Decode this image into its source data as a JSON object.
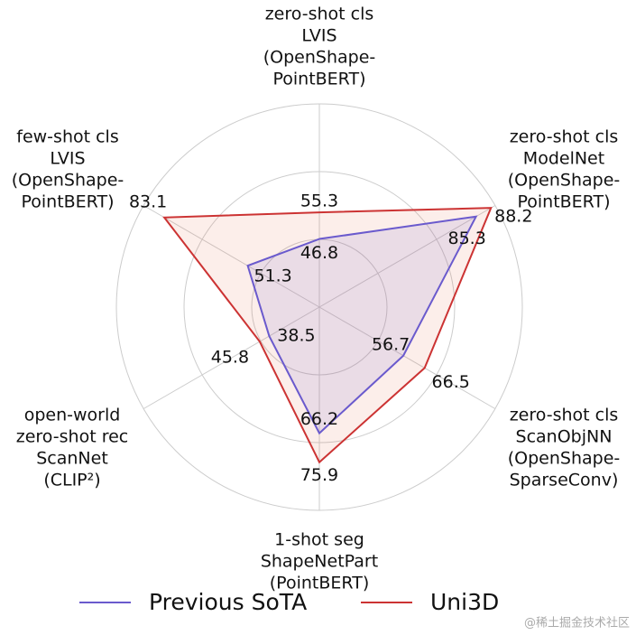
{
  "chart_data": {
    "type": "radar",
    "axes": [
      {
        "label": [
          "zero-shot cls",
          "LVIS",
          "(OpenShape-",
          "PointBERT)"
        ],
        "rlim": [
          25,
          90
        ]
      },
      {
        "label": [
          "zero-shot cls",
          "ModelNet",
          "(OpenShape-",
          "PointBERT)"
        ],
        "rlim": [
          55,
          89
        ]
      },
      {
        "label": [
          "zero-shot cls",
          "ScanObjNN",
          "(OpenShape-",
          "SparseConv)"
        ],
        "rlim": [
          18,
          99
        ]
      },
      {
        "label": [
          "1-shot seg",
          "ShapeNetPart",
          "(PointBERT)"
        ],
        "rlim": [
          24,
          92
        ]
      },
      {
        "label": [
          "open-world",
          "zero-shot rec",
          "ScanNet",
          "(CLIP²)"
        ],
        "rlim": [
          0,
          135
        ]
      },
      {
        "label": [
          "few-shot cls",
          "LVIS",
          "(OpenShape-",
          "PointBERT)"
        ],
        "rlim": [
          24,
          91
        ]
      }
    ],
    "series": [
      {
        "name": "Previous SoTA",
        "color": "#6a5acd",
        "values": [
          46.8,
          85.3,
          56.7,
          66.2,
          38.5,
          51.3
        ]
      },
      {
        "name": "Uni3D",
        "color": "#cc3333",
        "values": [
          55.3,
          88.2,
          66.5,
          75.9,
          45.8,
          83.1
        ]
      }
    ],
    "legend": "bottom",
    "watermark": "@稀土掘金技术社区"
  }
}
